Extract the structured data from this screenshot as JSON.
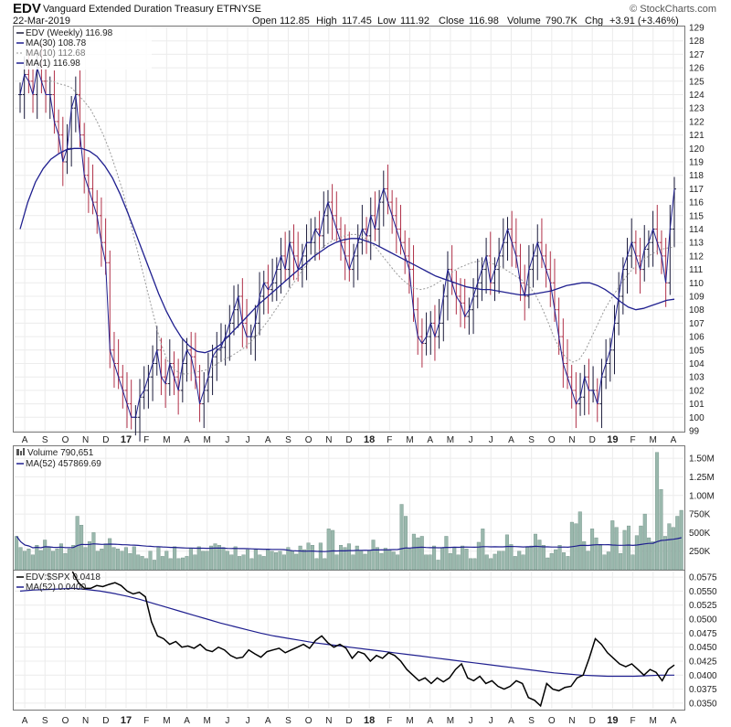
{
  "header": {
    "symbol": "EDV",
    "name": "Vanguard Extended Duration Treasury ETF",
    "exchange": "NYSE",
    "date": "22-Mar-2019",
    "open_label": "Open",
    "open": "112.85",
    "high_label": "High",
    "high": "117.45",
    "low_label": "Low",
    "low": "111.92",
    "close_label": "Close",
    "close": "116.98",
    "volume_label": "Volume",
    "volume": "790.7K",
    "chg_label": "Chg",
    "chg": "+3.91 (+3.46%)",
    "copyright": "© StockCharts.com"
  },
  "legend": {
    "price": "EDV (Weekly) 116.98",
    "ma30": "MA(30) 108.78",
    "ma10": "MA(10) 112.68",
    "ma1": "MA(1) 116.98",
    "volume": "Volume 790,651",
    "vol_ma": "MA(52) 457869.69",
    "ratio": "EDV:$SPX 0.0418",
    "ratio_ma": "MA(52) 0.0400"
  },
  "colors": {
    "up": "#1a1a3a",
    "down": "#b03048",
    "ma": "#1f1f8f",
    "ma10": "#9a9a9a",
    "volume_bar": "#9ab8ad",
    "ratio_line": "#000000"
  },
  "chart_data": [
    {
      "type": "line",
      "title": "EDV (Weekly)",
      "ylim": [
        99,
        129
      ],
      "y_ticks": [
        "99",
        "100",
        "101",
        "102",
        "103",
        "104",
        "105",
        "106",
        "107",
        "108",
        "109",
        "110",
        "111",
        "112",
        "113",
        "114",
        "115",
        "116",
        "117",
        "118",
        "119",
        "120",
        "121",
        "122",
        "123",
        "124",
        "125",
        "126",
        "127",
        "128",
        "129"
      ],
      "x_month_labels": [
        "A",
        "S",
        "O",
        "N",
        "D",
        "17",
        "F",
        "M",
        "A",
        "M",
        "J",
        "J",
        "A",
        "S",
        "O",
        "N",
        "D",
        "18",
        "F",
        "M",
        "A",
        "M",
        "J",
        "J",
        "A",
        "S",
        "O",
        "N",
        "D",
        "19",
        "F",
        "M",
        "A"
      ],
      "series": [
        {
          "name": "MA(1) close",
          "values": [
            124,
            125.5,
            125,
            124,
            126,
            125,
            124,
            124,
            122,
            121,
            119,
            120,
            123,
            124,
            121,
            118,
            117,
            116,
            115,
            113,
            111.5,
            105,
            104,
            103,
            102,
            101,
            100,
            100,
            101.5,
            102,
            103,
            104,
            105,
            103,
            102.5,
            104,
            103,
            102,
            104,
            105,
            104.5,
            103,
            101,
            102,
            103,
            104.5,
            105,
            105.2,
            106,
            107,
            108,
            109,
            107,
            106,
            106,
            107,
            109,
            110,
            109.5,
            110,
            111,
            112,
            111,
            113,
            112,
            111,
            112,
            113,
            113,
            114,
            113.5,
            115,
            116,
            115,
            114,
            113,
            112,
            111,
            112,
            113,
            114,
            113.5,
            115,
            114,
            116,
            117,
            116,
            115,
            114,
            113,
            112,
            111,
            108,
            106,
            105.5,
            106,
            107,
            106,
            107,
            109,
            111,
            110,
            109,
            108.5,
            107.5,
            108,
            109,
            110,
            111,
            112,
            110,
            111,
            112,
            113,
            114,
            113,
            112,
            110,
            109,
            111,
            112,
            113,
            112,
            111,
            110,
            108,
            106,
            104,
            103,
            102,
            101,
            101.5,
            103,
            102,
            102,
            101,
            103,
            104,
            105,
            107,
            109,
            111,
            112,
            113,
            112,
            111,
            112.5,
            113,
            114,
            113,
            112,
            110,
            114,
            116.98
          ]
        },
        {
          "name": "MA(10)",
          "values": [
            125,
            125,
            124.8,
            124.7,
            124.5,
            124,
            123.5,
            122.9,
            122,
            121,
            119.8,
            118.4,
            116.9,
            115,
            113.1,
            111.2,
            109.3,
            107.4,
            105.6,
            104.3,
            103.6,
            103.3,
            103.2,
            103.3,
            103.4,
            103.5,
            103.7,
            104,
            104.3,
            104.5,
            104.8,
            105.1,
            105.5,
            106,
            106.6,
            107.2,
            107.9,
            108.6,
            109.3,
            110,
            110.7,
            111.3,
            111.9,
            112.4,
            112.8,
            113.1,
            113.3,
            113.5,
            113.6,
            113.6,
            113.4,
            113.1,
            112.6,
            112,
            111.4,
            110.8,
            110.3,
            109.9,
            109.6,
            109.5,
            109.6,
            109.8,
            110.1,
            110.4,
            110.8,
            111.1,
            111.3,
            111.5,
            111.6,
            111.6,
            111.5,
            111.3,
            111.1,
            110.8,
            110.5,
            110.2,
            109.8,
            109.2,
            108.3,
            107.2,
            106,
            105,
            104.4,
            104.1,
            104.3,
            105,
            106,
            107,
            108,
            108.8,
            109.5,
            110.2,
            110.8,
            111.3,
            111.7,
            112,
            112.3,
            112.5,
            112.6,
            112.68
          ]
        },
        {
          "name": "MA(30)",
          "values": [
            114,
            116,
            117.5,
            118.5,
            119.2,
            119.6,
            119.9,
            120,
            120,
            119.8,
            119.4,
            118.7,
            117.8,
            116.6,
            115.2,
            113.7,
            112.2,
            110.7,
            109.2,
            107.9,
            106.8,
            105.9,
            105.3,
            104.9,
            104.8,
            105,
            105.4,
            106,
            106.6,
            107.2,
            107.8,
            108.4,
            108.9,
            109.4,
            109.9,
            110.4,
            110.9,
            111.4,
            111.9,
            112.3,
            112.7,
            113,
            113.2,
            113.3,
            113.3,
            113.1,
            112.9,
            112.6,
            112.3,
            112,
            111.7,
            111.4,
            111.1,
            110.8,
            110.5,
            110.3,
            110.1,
            109.9,
            109.7,
            109.6,
            109.5,
            109.5,
            109.4,
            109.3,
            109.2,
            109.1,
            109.1,
            109.2,
            109.3,
            109.4,
            109.6,
            109.8,
            109.9,
            110,
            110,
            109.8,
            109.5,
            109.1,
            108.6,
            108.2,
            108,
            108.1,
            108.3,
            108.5,
            108.7,
            108.78
          ]
        }
      ]
    },
    {
      "type": "bar",
      "title": "Volume",
      "y_ticks": [
        "250K",
        "500K",
        "750K",
        "1.00M",
        "1.25M",
        "1.50M"
      ],
      "ylim": [
        0,
        1650000
      ],
      "values": [
        450000,
        300000,
        250000,
        280000,
        200000,
        330000,
        260000,
        400000,
        300000,
        250000,
        280000,
        350000,
        220000,
        280000,
        330000,
        720000,
        600000,
        300000,
        380000,
        500000,
        250000,
        280000,
        350000,
        420000,
        300000,
        280000,
        250000,
        300000,
        220000,
        310000,
        200000,
        180000,
        150000,
        250000,
        130000,
        300000,
        180000,
        250000,
        150000,
        310000,
        150000,
        160000,
        180000,
        290000,
        200000,
        310000,
        250000,
        250000,
        320000,
        350000,
        330000,
        300000,
        250000,
        200000,
        310000,
        180000,
        200000,
        270000,
        150000,
        270000,
        200000,
        180000,
        280000,
        250000,
        230000,
        250000,
        200000,
        300000,
        250000,
        210000,
        320000,
        270000,
        360000,
        330000,
        150000,
        360000,
        150000,
        550000,
        530000,
        200000,
        330000,
        300000,
        350000,
        200000,
        320000,
        250000,
        210000,
        250000,
        400000,
        300000,
        220000,
        290000,
        260000,
        240000,
        200000,
        880000,
        720000,
        280000,
        480000,
        430000,
        450000,
        200000,
        200000,
        320000,
        130000,
        300000,
        450000,
        220000,
        300000,
        200000,
        320000,
        280000,
        150000,
        150000,
        370000,
        550000,
        200000,
        150000,
        210000,
        250000,
        250000,
        470000,
        340000,
        180000,
        250000,
        200000,
        300000,
        320000,
        480000,
        400000,
        330000,
        160000,
        220000,
        270000,
        330000,
        230000,
        180000,
        640000,
        620000,
        780000,
        380000,
        250000,
        550000,
        430000,
        330000,
        200000,
        240000,
        660000,
        570000,
        220000,
        530000,
        590000,
        200000,
        460000,
        590000,
        750000,
        430000,
        380000,
        1580000,
        1080000,
        450000,
        620000,
        570000,
        720000,
        800000
      ]
    },
    {
      "type": "line",
      "title": "EDV:$SPX",
      "ylim": [
        0.034,
        0.0585
      ],
      "y_ticks": [
        "0.0350",
        "0.0375",
        "0.0400",
        "0.0425",
        "0.0450",
        "0.0475",
        "0.0500",
        "0.0525",
        "0.0550",
        "0.0575"
      ],
      "series": [
        {
          "name": "EDV:$SPX",
          "values": [
            0.0585,
            0.0565,
            0.0555,
            0.0555,
            0.056,
            0.0558,
            0.0562,
            0.0565,
            0.056,
            0.055,
            0.0545,
            0.0548,
            0.054,
            0.0495,
            0.047,
            0.0465,
            0.0455,
            0.046,
            0.045,
            0.0452,
            0.0448,
            0.0455,
            0.0445,
            0.0442,
            0.045,
            0.0445,
            0.0435,
            0.043,
            0.0432,
            0.0445,
            0.0438,
            0.0432,
            0.0442,
            0.0445,
            0.0448,
            0.044,
            0.0445,
            0.045,
            0.0455,
            0.0448,
            0.0462,
            0.047,
            0.0458,
            0.045,
            0.0455,
            0.0448,
            0.043,
            0.0442,
            0.0438,
            0.0425,
            0.0435,
            0.043,
            0.044,
            0.0435,
            0.0425,
            0.041,
            0.04,
            0.039,
            0.0395,
            0.0385,
            0.0395,
            0.0388,
            0.0395,
            0.041,
            0.042,
            0.0395,
            0.039,
            0.0398,
            0.0385,
            0.039,
            0.038,
            0.0375,
            0.038,
            0.039,
            0.0385,
            0.036,
            0.0355,
            0.0345,
            0.0385,
            0.0375,
            0.0372,
            0.0378,
            0.038,
            0.0395,
            0.04,
            0.043,
            0.0465,
            0.0455,
            0.044,
            0.043,
            0.042,
            0.0415,
            0.042,
            0.041,
            0.04,
            0.041,
            0.0405,
            0.039,
            0.041,
            0.0418
          ]
        },
        {
          "name": "MA(52)",
          "values": [
            0.055,
            0.0552,
            0.0553,
            0.0554,
            0.0555,
            0.0553,
            0.055,
            0.0546,
            0.0541,
            0.0535,
            0.0528,
            0.0521,
            0.0514,
            0.0507,
            0.05,
            0.0493,
            0.0487,
            0.0481,
            0.0475,
            0.047,
            0.0466,
            0.0462,
            0.0458,
            0.0455,
            0.0452,
            0.0449,
            0.0446,
            0.0443,
            0.044,
            0.0437,
            0.0434,
            0.0431,
            0.0428,
            0.0425,
            0.0422,
            0.0419,
            0.0416,
            0.0413,
            0.041,
            0.0407,
            0.0404,
            0.0402,
            0.04,
            0.0399,
            0.0398,
            0.0398,
            0.0398,
            0.0399,
            0.04,
            0.04
          ]
        }
      ]
    }
  ]
}
